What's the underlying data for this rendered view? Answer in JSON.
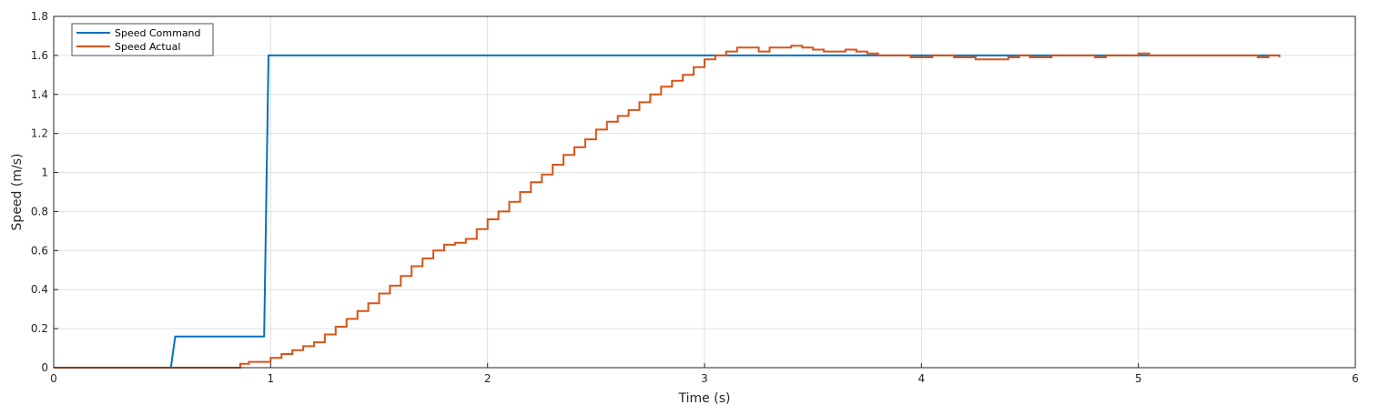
{
  "chart_data": {
    "type": "line",
    "xlabel": "Time (s)",
    "ylabel": "Speed (m/s)",
    "xlim": [
      0,
      6
    ],
    "ylim": [
      0,
      1.8
    ],
    "xticks": [
      "0",
      "1",
      "2",
      "3",
      "4",
      "5",
      "6"
    ],
    "yticks": [
      "0",
      "0.2",
      "0.4",
      "0.6",
      "0.8",
      "1",
      "1.2",
      "1.4",
      "1.6",
      "1.8"
    ],
    "grid": true,
    "legend_position": "top-left",
    "series": [
      {
        "name": "Speed Command",
        "color": "#0072BD",
        "x": [
          0,
          0.54,
          0.56,
          0.97,
          0.99,
          5.65
        ],
        "y": [
          0,
          0,
          0.16,
          0.16,
          1.6,
          1.6
        ]
      },
      {
        "name": "Speed Actual",
        "color": "#D95319",
        "x": [
          0,
          0.86,
          0.9,
          0.95,
          1.0,
          1.05,
          1.1,
          1.15,
          1.2,
          1.25,
          1.3,
          1.35,
          1.4,
          1.45,
          1.5,
          1.55,
          1.6,
          1.65,
          1.7,
          1.75,
          1.8,
          1.85,
          1.9,
          1.95,
          2.0,
          2.05,
          2.1,
          2.15,
          2.2,
          2.25,
          2.3,
          2.35,
          2.4,
          2.45,
          2.5,
          2.55,
          2.6,
          2.65,
          2.7,
          2.75,
          2.8,
          2.85,
          2.9,
          2.95,
          3.0,
          3.05,
          3.1,
          3.15,
          3.2,
          3.25,
          3.3,
          3.35,
          3.4,
          3.45,
          3.5,
          3.55,
          3.6,
          3.65,
          3.7,
          3.75,
          3.8,
          3.85,
          3.9,
          3.95,
          4.0,
          4.05,
          4.1,
          4.15,
          4.2,
          4.25,
          4.3,
          4.35,
          4.4,
          4.45,
          4.5,
          4.55,
          4.6,
          4.65,
          4.7,
          4.75,
          4.8,
          4.85,
          4.9,
          4.95,
          5.0,
          5.05,
          5.1,
          5.15,
          5.2,
          5.25,
          5.3,
          5.35,
          5.4,
          5.45,
          5.5,
          5.55,
          5.6,
          5.65
        ],
        "y": [
          0,
          0.02,
          0.03,
          0.03,
          0.05,
          0.07,
          0.09,
          0.11,
          0.13,
          0.17,
          0.21,
          0.25,
          0.29,
          0.33,
          0.38,
          0.42,
          0.47,
          0.52,
          0.56,
          0.6,
          0.63,
          0.64,
          0.66,
          0.71,
          0.76,
          0.8,
          0.85,
          0.9,
          0.95,
          0.99,
          1.04,
          1.09,
          1.13,
          1.17,
          1.22,
          1.26,
          1.29,
          1.32,
          1.36,
          1.4,
          1.44,
          1.47,
          1.5,
          1.54,
          1.58,
          1.6,
          1.62,
          1.64,
          1.64,
          1.62,
          1.64,
          1.64,
          1.65,
          1.64,
          1.63,
          1.62,
          1.62,
          1.63,
          1.62,
          1.61,
          1.6,
          1.6,
          1.6,
          1.59,
          1.59,
          1.6,
          1.6,
          1.59,
          1.59,
          1.58,
          1.58,
          1.58,
          1.59,
          1.6,
          1.59,
          1.59,
          1.6,
          1.6,
          1.6,
          1.6,
          1.59,
          1.6,
          1.6,
          1.6,
          1.61,
          1.6,
          1.6,
          1.6,
          1.6,
          1.6,
          1.6,
          1.6,
          1.6,
          1.6,
          1.6,
          1.59,
          1.6,
          1.59
        ]
      }
    ]
  }
}
